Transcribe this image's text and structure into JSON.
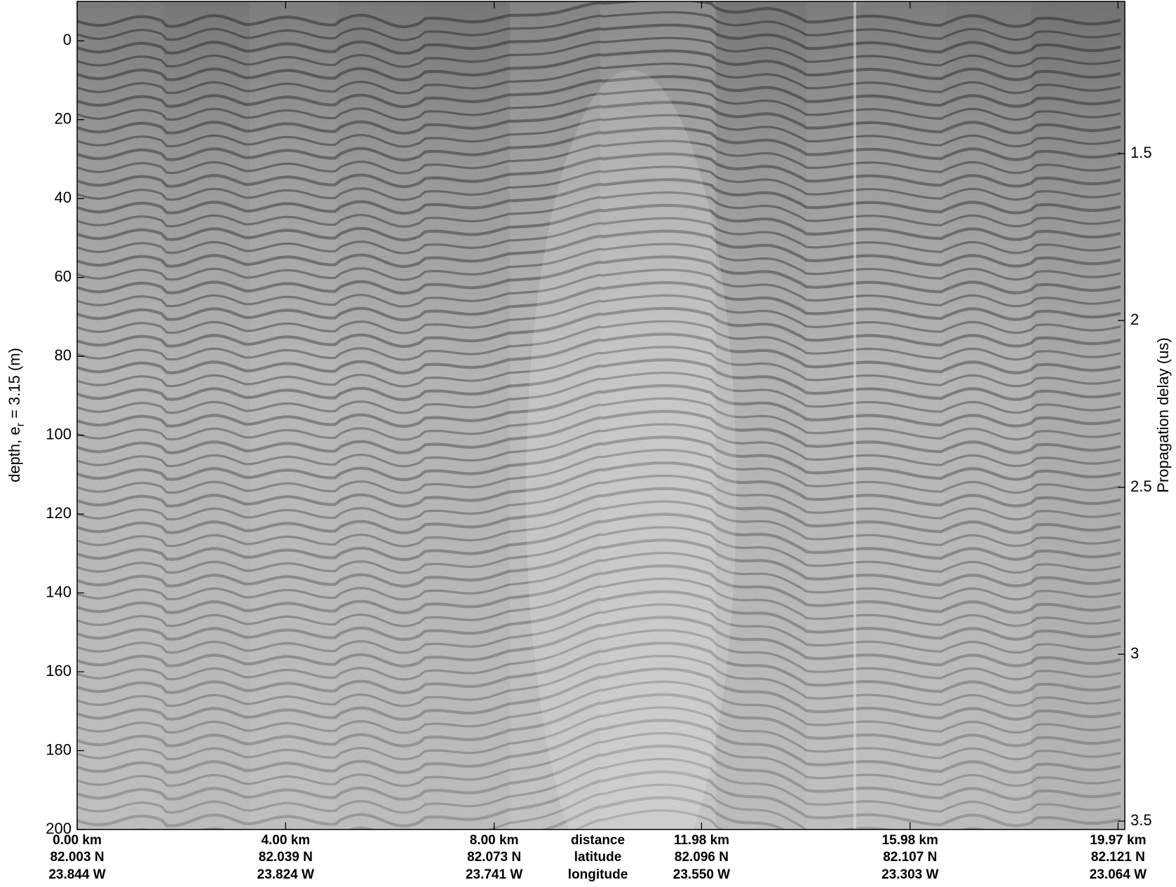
{
  "chart_data": {
    "type": "echogram",
    "ylabel": [
      "depth, e",
      "r",
      " = 3.15 (m)"
    ],
    "y2label": "Propagation delay (us)",
    "ylim": [
      200,
      -10
    ],
    "yticks": [
      0,
      20,
      40,
      60,
      80,
      100,
      120,
      140,
      160,
      180,
      200
    ],
    "y2lim": [
      3.525,
      1.044
    ],
    "y2ticks": [
      1.5,
      2,
      2.5,
      3,
      3.5
    ],
    "xlim": [
      0,
      20.1
    ],
    "xticks": [
      {
        "value": 0,
        "label": "0.00 km"
      },
      {
        "value": 4.0,
        "label": "4.00 km"
      },
      {
        "value": 8.0,
        "label": "8.00 km"
      },
      {
        "value": 11.98,
        "label": "11.98 km"
      },
      {
        "value": 15.98,
        "label": "15.98 km"
      },
      {
        "value": 19.97,
        "label": "19.97 km"
      }
    ],
    "xtick_latitude": [
      "82.003 N",
      "82.039 N",
      "82.073 N",
      "82.096 N",
      "82.107 N",
      "82.121 N"
    ],
    "xtick_longitude": [
      "23.844 W",
      "23.824 W",
      "23.741 W",
      "23.550 W",
      "23.303 W",
      "23.064 W"
    ],
    "xtick_row_labels": [
      "distance",
      "latitude",
      "longitude"
    ]
  }
}
